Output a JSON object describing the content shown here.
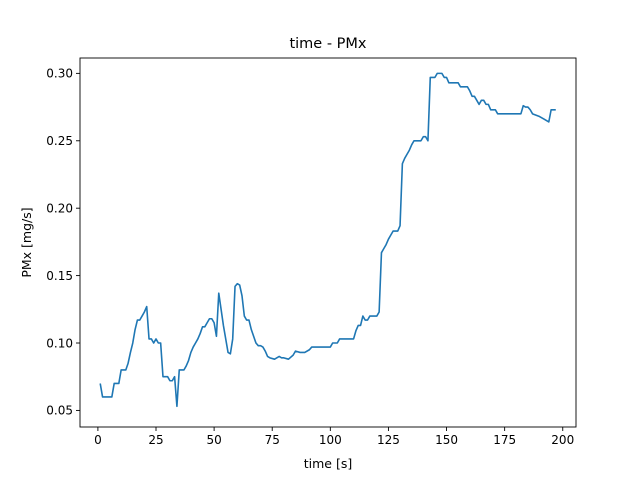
{
  "chart_data": {
    "type": "line",
    "title": "time - PMx",
    "xlabel": "time [s]",
    "ylabel": "PMx [mg/s]",
    "xlim": [
      -7.7,
      205.7
    ],
    "ylim": [
      0.0377,
      0.3114
    ],
    "xticks": [
      0,
      25,
      50,
      75,
      100,
      125,
      150,
      175,
      200
    ],
    "yticks": [
      0.05,
      0.1,
      0.15,
      0.2,
      0.25,
      0.3
    ],
    "ytick_labels": [
      "0.05",
      "0.10",
      "0.15",
      "0.20",
      "0.25",
      "0.30"
    ],
    "grid": false,
    "legend": "none",
    "series": [
      {
        "color": "#1f77b4",
        "points": [
          [
            1,
            0.07
          ],
          [
            2,
            0.06
          ],
          [
            3,
            0.06
          ],
          [
            4,
            0.06
          ],
          [
            5,
            0.06
          ],
          [
            6,
            0.06
          ],
          [
            7,
            0.07
          ],
          [
            8,
            0.07
          ],
          [
            9,
            0.07
          ],
          [
            10,
            0.08
          ],
          [
            11,
            0.08
          ],
          [
            12,
            0.08
          ],
          [
            13,
            0.085
          ],
          [
            14,
            0.093
          ],
          [
            15,
            0.1
          ],
          [
            16,
            0.11
          ],
          [
            17,
            0.117
          ],
          [
            18,
            0.117
          ],
          [
            19,
            0.12
          ],
          [
            20,
            0.123
          ],
          [
            21,
            0.127
          ],
          [
            22,
            0.103
          ],
          [
            23,
            0.103
          ],
          [
            24,
            0.1
          ],
          [
            25,
            0.103
          ],
          [
            26,
            0.1
          ],
          [
            27,
            0.1
          ],
          [
            28,
            0.075
          ],
          [
            29,
            0.075
          ],
          [
            30,
            0.075
          ],
          [
            31,
            0.072
          ],
          [
            32,
            0.072
          ],
          [
            33,
            0.075
          ],
          [
            34,
            0.053
          ],
          [
            35,
            0.08
          ],
          [
            36,
            0.08
          ],
          [
            37,
            0.08
          ],
          [
            38,
            0.083
          ],
          [
            39,
            0.087
          ],
          [
            40,
            0.093
          ],
          [
            41,
            0.097
          ],
          [
            42,
            0.1
          ],
          [
            43,
            0.103
          ],
          [
            44,
            0.107
          ],
          [
            45,
            0.112
          ],
          [
            46,
            0.112
          ],
          [
            47,
            0.115
          ],
          [
            48,
            0.118
          ],
          [
            49,
            0.118
          ],
          [
            50,
            0.115
          ],
          [
            51,
            0.105
          ],
          [
            52,
            0.137
          ],
          [
            53,
            0.125
          ],
          [
            54,
            0.113
          ],
          [
            55,
            0.103
          ],
          [
            56,
            0.093
          ],
          [
            57,
            0.092
          ],
          [
            58,
            0.103
          ],
          [
            59,
            0.142
          ],
          [
            60,
            0.144
          ],
          [
            61,
            0.143
          ],
          [
            62,
            0.135
          ],
          [
            63,
            0.12
          ],
          [
            64,
            0.117
          ],
          [
            65,
            0.117
          ],
          [
            66,
            0.11
          ],
          [
            67,
            0.105
          ],
          [
            68,
            0.1
          ],
          [
            69,
            0.098
          ],
          [
            70,
            0.098
          ],
          [
            71,
            0.097
          ],
          [
            72,
            0.094
          ],
          [
            73,
            0.09
          ],
          [
            74,
            0.089
          ],
          [
            76,
            0.088
          ],
          [
            78,
            0.09
          ],
          [
            79,
            0.089
          ],
          [
            80,
            0.089
          ],
          [
            82,
            0.088
          ],
          [
            84,
            0.091
          ],
          [
            85,
            0.094
          ],
          [
            87,
            0.093
          ],
          [
            89,
            0.093
          ],
          [
            91,
            0.095
          ],
          [
            92,
            0.097
          ],
          [
            94,
            0.097
          ],
          [
            97,
            0.097
          ],
          [
            100,
            0.097
          ],
          [
            101,
            0.1
          ],
          [
            102,
            0.1
          ],
          [
            103,
            0.1
          ],
          [
            104,
            0.103
          ],
          [
            106,
            0.103
          ],
          [
            108,
            0.103
          ],
          [
            110,
            0.103
          ],
          [
            111,
            0.109
          ],
          [
            112,
            0.113
          ],
          [
            113,
            0.113
          ],
          [
            114,
            0.12
          ],
          [
            115,
            0.117
          ],
          [
            116,
            0.117
          ],
          [
            117,
            0.12
          ],
          [
            118,
            0.12
          ],
          [
            119,
            0.12
          ],
          [
            120,
            0.12
          ],
          [
            121,
            0.123
          ],
          [
            122,
            0.167
          ],
          [
            123,
            0.17
          ],
          [
            124,
            0.173
          ],
          [
            125,
            0.177
          ],
          [
            126,
            0.18
          ],
          [
            127,
            0.183
          ],
          [
            128,
            0.183
          ],
          [
            129,
            0.183
          ],
          [
            130,
            0.187
          ],
          [
            131,
            0.233
          ],
          [
            132,
            0.237
          ],
          [
            133,
            0.24
          ],
          [
            134,
            0.243
          ],
          [
            135,
            0.247
          ],
          [
            136,
            0.25
          ],
          [
            137,
            0.25
          ],
          [
            138,
            0.25
          ],
          [
            139,
            0.25
          ],
          [
            140,
            0.253
          ],
          [
            141,
            0.253
          ],
          [
            142,
            0.25
          ],
          [
            143,
            0.297
          ],
          [
            144,
            0.297
          ],
          [
            145,
            0.297
          ],
          [
            146,
            0.3
          ],
          [
            147,
            0.3
          ],
          [
            148,
            0.3
          ],
          [
            149,
            0.297
          ],
          [
            150,
            0.297
          ],
          [
            151,
            0.293
          ],
          [
            152,
            0.293
          ],
          [
            153,
            0.293
          ],
          [
            154,
            0.293
          ],
          [
            155,
            0.293
          ],
          [
            156,
            0.29
          ],
          [
            157,
            0.29
          ],
          [
            158,
            0.29
          ],
          [
            159,
            0.29
          ],
          [
            160,
            0.287
          ],
          [
            161,
            0.283
          ],
          [
            162,
            0.283
          ],
          [
            163,
            0.28
          ],
          [
            164,
            0.277
          ],
          [
            165,
            0.28
          ],
          [
            166,
            0.28
          ],
          [
            167,
            0.277
          ],
          [
            168,
            0.277
          ],
          [
            169,
            0.273
          ],
          [
            170,
            0.273
          ],
          [
            171,
            0.273
          ],
          [
            172,
            0.27
          ],
          [
            173,
            0.27
          ],
          [
            175,
            0.27
          ],
          [
            177,
            0.27
          ],
          [
            179,
            0.27
          ],
          [
            181,
            0.27
          ],
          [
            182,
            0.27
          ],
          [
            183,
            0.276
          ],
          [
            184,
            0.275
          ],
          [
            185,
            0.275
          ],
          [
            186,
            0.273
          ],
          [
            187,
            0.27
          ],
          [
            190,
            0.268
          ],
          [
            192,
            0.266
          ],
          [
            194,
            0.264
          ],
          [
            195,
            0.273
          ],
          [
            196,
            0.273
          ],
          [
            197,
            0.273
          ]
        ]
      }
    ]
  }
}
